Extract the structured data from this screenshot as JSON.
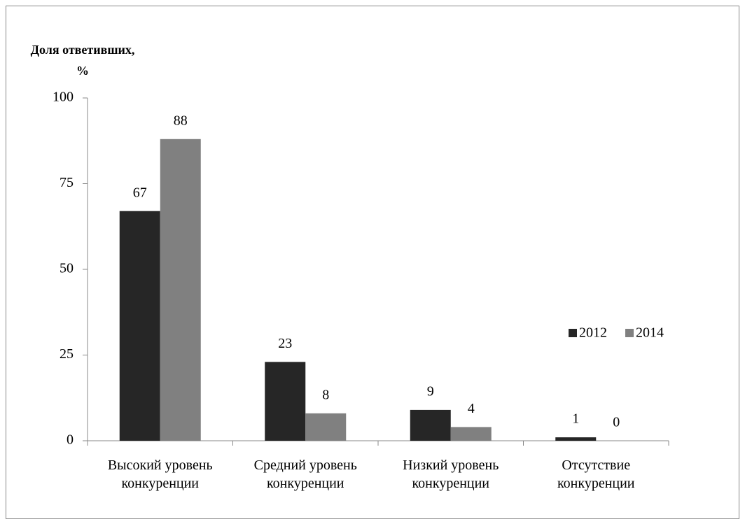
{
  "chart_data": {
    "type": "bar",
    "y_label": "Доля ответивших, %",
    "categories": [
      "Высокий уровень конкуренции",
      "Средний уровень конкуренции",
      "Низкий уровень конкуренции",
      "Отсутствие конкуренции"
    ],
    "series": [
      {
        "name": "2012",
        "color": "#262626",
        "values": [
          67,
          23,
          9,
          1
        ]
      },
      {
        "name": "2014",
        "color": "#808080",
        "values": [
          88,
          8,
          4,
          0
        ]
      }
    ],
    "ylim": [
      0,
      100
    ],
    "yticks": [
      0,
      25,
      50,
      75,
      100
    ],
    "grid": false,
    "legend": "right"
  }
}
